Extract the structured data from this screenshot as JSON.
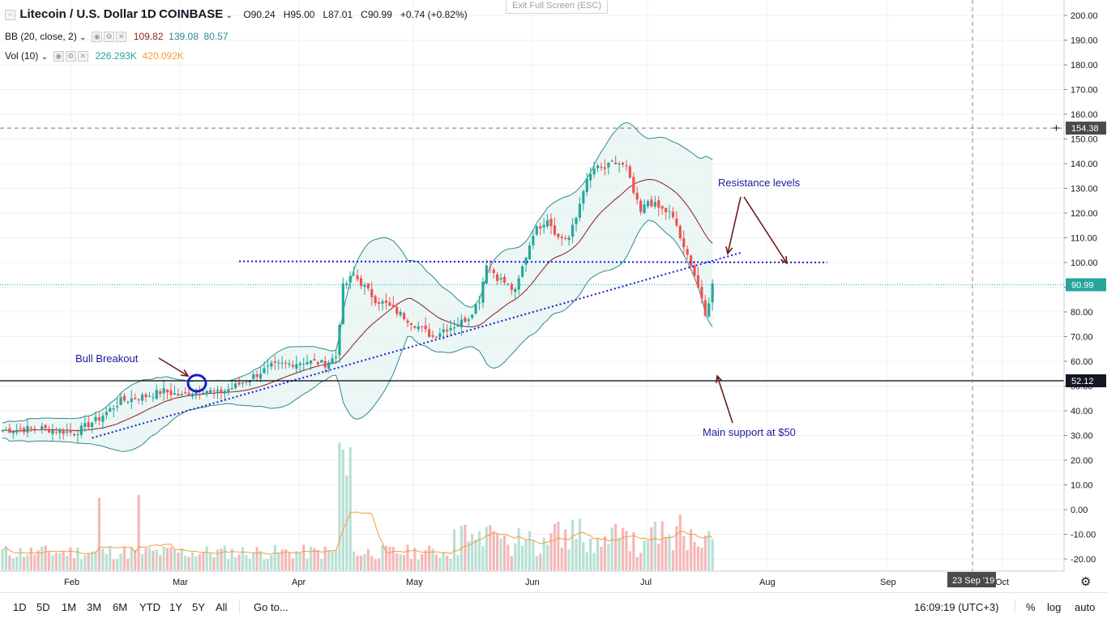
{
  "header": {
    "symbol": "Litecoin / U.S. Dollar",
    "interval": "1D",
    "exchange": "COINBASE",
    "ohlc": {
      "o": "O90.24",
      "h": "H95.00",
      "l": "L87.01",
      "c": "C90.99",
      "chg": "+0.74 (+0.82%)"
    },
    "exit_fullscreen": "Exit Full Screen (ESC)"
  },
  "indicators": {
    "bb": {
      "label": "BB (20, close, 2)",
      "basis": "109.82",
      "upper": "139.08",
      "lower": "80.57"
    },
    "vol": {
      "label": "Vol (10)",
      "v1": "226.293K",
      "v2": "420.092K"
    }
  },
  "colors": {
    "up": "#26a69a",
    "down": "#ef5350",
    "bb_basis": "#8b1e1e",
    "bb_band": "#2e8b8b",
    "bb_fill": "#e6f4f3",
    "trend": "#1a1acc",
    "annotation_arrow": "#6b1a1a",
    "vol_up": "#b9e0d5",
    "vol_down": "#f5b8b8",
    "vol_ma": "#f39c3a",
    "circle": "#1a1acc"
  },
  "chart_data": {
    "type": "candlestick",
    "price_axis": [
      "200.00",
      "190.00",
      "180.00",
      "170.00",
      "160.00",
      "150.00",
      "140.00",
      "130.00",
      "120.00",
      "110.00",
      "100.00",
      "90.00",
      "80.00",
      "70.00",
      "60.00",
      "50.00",
      "40.00",
      "30.00",
      "20.00",
      "10.00",
      "0.00",
      "-10.00",
      "-20.00"
    ],
    "ylim": [
      -23,
      205
    ],
    "time_axis": [
      "Feb",
      "Mar",
      "Apr",
      "May",
      "Jun",
      "Jul",
      "Aug",
      "Sep",
      "Oct"
    ],
    "x_date_label": "23 Sep '19",
    "current_price": 90.99,
    "current_price_label": "90.99",
    "hline_dashed": 154.38,
    "hline_dashed_label": "154.38",
    "hline_support": 52.12,
    "hline_support_label": "52.12",
    "resistance_line": 100,
    "series_close": [
      [
        0,
        32
      ],
      [
        10,
        33
      ],
      [
        20,
        31
      ],
      [
        27,
        37
      ],
      [
        33,
        44
      ],
      [
        40,
        46
      ],
      [
        45,
        48
      ],
      [
        50,
        46
      ],
      [
        55,
        49
      ],
      [
        60,
        47
      ],
      [
        65,
        50
      ],
      [
        70,
        54
      ],
      [
        75,
        58
      ],
      [
        80,
        59
      ],
      [
        85,
        60
      ],
      [
        90,
        59
      ],
      [
        93,
        62
      ],
      [
        95,
        90
      ],
      [
        98,
        95
      ],
      [
        101,
        90
      ],
      [
        104,
        85
      ],
      [
        107,
        83
      ],
      [
        110,
        80
      ],
      [
        115,
        75
      ],
      [
        120,
        70
      ],
      [
        123,
        73
      ],
      [
        127,
        75
      ],
      [
        130,
        78
      ],
      [
        133,
        85
      ],
      [
        135,
        100
      ],
      [
        138,
        94
      ],
      [
        140,
        92
      ],
      [
        143,
        88
      ],
      [
        145,
        98
      ],
      [
        148,
        112
      ],
      [
        152,
        118
      ],
      [
        155,
        110
      ],
      [
        158,
        110
      ],
      [
        160,
        118
      ],
      [
        162,
        130
      ],
      [
        165,
        138
      ],
      [
        168,
        138
      ],
      [
        170,
        140
      ],
      [
        172,
        140
      ],
      [
        174,
        138
      ],
      [
        176,
        128
      ],
      [
        178,
        120
      ],
      [
        180,
        125
      ],
      [
        183,
        122
      ],
      [
        186,
        120
      ],
      [
        188,
        115
      ],
      [
        190,
        105
      ],
      [
        192,
        100
      ],
      [
        194,
        90
      ],
      [
        196,
        78
      ],
      [
        198,
        91
      ]
    ],
    "volume_scale_note": "",
    "annotations": [
      {
        "text": "Resistance levels"
      },
      {
        "text": "Bull Breakout"
      },
      {
        "text": "Main support at $50"
      }
    ]
  },
  "toolbar": {
    "ranges": [
      "1D",
      "5D",
      "1M",
      "3M",
      "6M",
      "YTD",
      "1Y",
      "5Y",
      "All"
    ],
    "goto": "Go to...",
    "clock": "16:09:19 (UTC+3)",
    "pct": "%",
    "log": "log",
    "auto": "auto"
  }
}
